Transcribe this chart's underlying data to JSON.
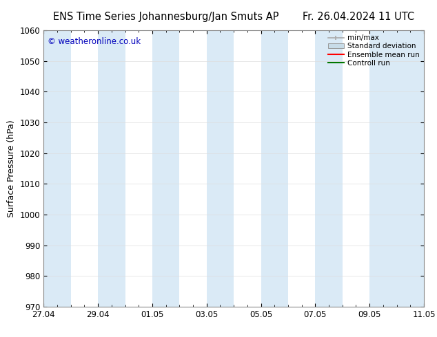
{
  "title_left": "ENS Time Series Johannesburg/Jan Smuts AP",
  "title_right": "Fr. 26.04.2024 11 UTC",
  "ylabel": "Surface Pressure (hPa)",
  "ylim": [
    970,
    1060
  ],
  "yticks": [
    970,
    980,
    990,
    1000,
    1010,
    1020,
    1030,
    1040,
    1050,
    1060
  ],
  "xlim_start": 0,
  "xlim_end": 14,
  "xtick_positions": [
    0,
    2,
    4,
    6,
    8,
    10,
    12,
    14
  ],
  "xtick_labels": [
    "27.04",
    "29.04",
    "01.05",
    "03.05",
    "05.05",
    "07.05",
    "09.05",
    "11.05"
  ],
  "background_color": "#ffffff",
  "plot_bg_color": "#ffffff",
  "shaded_bands": [
    {
      "x_start": 0,
      "x_end": 1,
      "color": "#daeaf6"
    },
    {
      "x_start": 2,
      "x_end": 3,
      "color": "#daeaf6"
    },
    {
      "x_start": 4,
      "x_end": 5,
      "color": "#daeaf6"
    },
    {
      "x_start": 6,
      "x_end": 7,
      "color": "#daeaf6"
    },
    {
      "x_start": 8,
      "x_end": 9,
      "color": "#daeaf6"
    },
    {
      "x_start": 10,
      "x_end": 11,
      "color": "#daeaf6"
    },
    {
      "x_start": 12,
      "x_end": 14,
      "color": "#daeaf6"
    }
  ],
  "watermark_text": "© weatheronline.co.uk",
  "watermark_color": "#0000bb",
  "watermark_fontsize": 8.5,
  "legend_labels": [
    "min/max",
    "Standard deviation",
    "Ensemble mean run",
    "Controll run"
  ],
  "legend_colors": [
    "#aaaaaa",
    "#c8dce8",
    "#ff0000",
    "#007700"
  ],
  "title_fontsize": 10.5,
  "axis_label_fontsize": 9,
  "tick_fontsize": 8.5,
  "grid_color": "#dddddd",
  "spine_color": "#888888"
}
